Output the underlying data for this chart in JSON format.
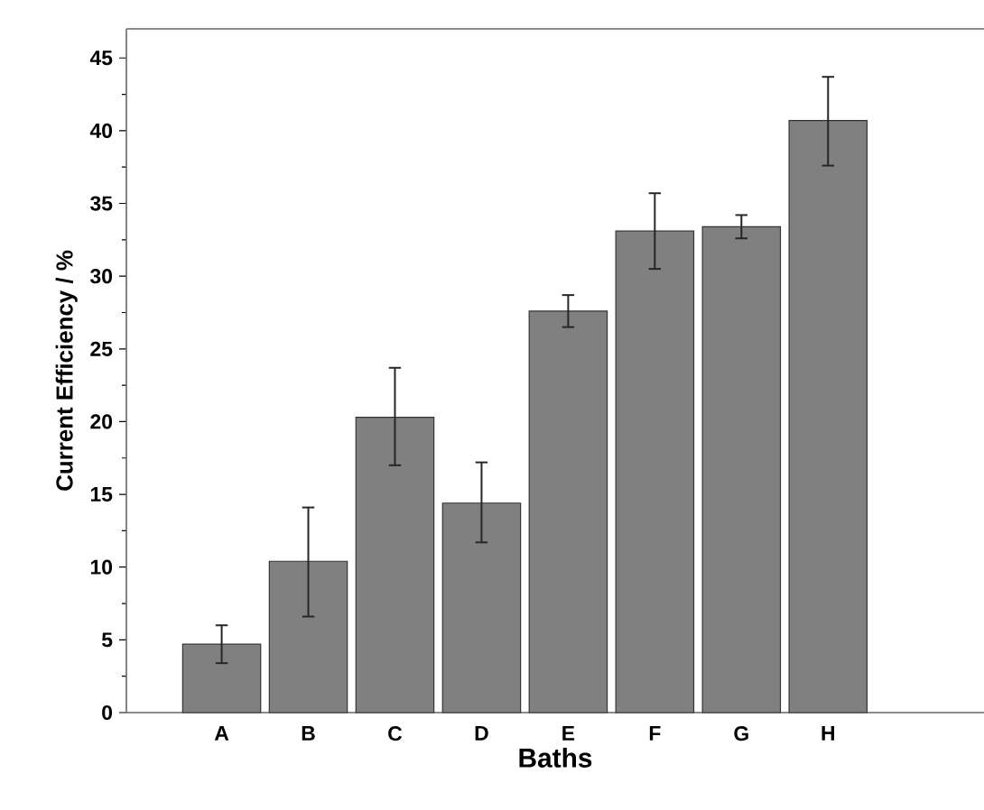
{
  "chart_data": {
    "type": "bar",
    "xlabel": "Baths",
    "ylabel": "Current Efficiency  /  %",
    "categories": [
      "A",
      "B",
      "C",
      "D",
      "E",
      "F",
      "G",
      "H"
    ],
    "values": [
      4.7,
      10.4,
      20.3,
      14.4,
      27.6,
      33.1,
      33.4,
      40.7
    ],
    "errors": [
      [
        3.4,
        6.0
      ],
      [
        6.6,
        14.1
      ],
      [
        17.0,
        23.7
      ],
      [
        11.7,
        17.2
      ],
      [
        26.5,
        28.7
      ],
      [
        30.5,
        35.7
      ],
      [
        32.6,
        34.2
      ],
      [
        37.6,
        43.7
      ]
    ],
    "color": "#808080",
    "ylim": [
      0,
      47
    ],
    "yticks": [
      0,
      5,
      10,
      15,
      20,
      25,
      30,
      35,
      40,
      45
    ]
  }
}
